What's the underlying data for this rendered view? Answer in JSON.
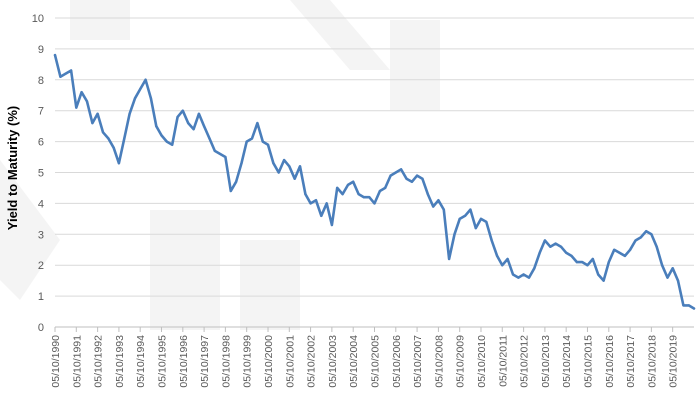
{
  "chart_data": {
    "type": "line",
    "title": "",
    "xlabel": "",
    "ylabel": "Yield to Maturity (%)",
    "ylim": [
      0,
      10
    ],
    "yticks": [
      "0",
      "1",
      "2",
      "3",
      "4",
      "5",
      "6",
      "7",
      "8",
      "9",
      "10"
    ],
    "x_ticks": [
      "05/10/1990",
      "05/10/1991",
      "05/10/1992",
      "05/10/1993",
      "05/10/1994",
      "05/10/1995",
      "05/10/1996",
      "05/10/1997",
      "05/10/1998",
      "05/10/1999",
      "05/10/2000",
      "05/10/2001",
      "05/10/2002",
      "05/10/2003",
      "05/10/2004",
      "05/10/2005",
      "05/10/2006",
      "05/10/2007",
      "05/10/2008",
      "05/10/2009",
      "05/10/2010",
      "05/10/2011",
      "05/10/2012",
      "05/10/2013",
      "05/10/2014",
      "05/10/2015",
      "05/10/2016",
      "05/10/2017",
      "05/10/2018",
      "05/10/2019"
    ],
    "grid": true,
    "legend": "none",
    "series_color": "#4a7ebb",
    "series": [
      {
        "x": [
          "1990-05",
          "1990-08",
          "1990-11",
          "1991-02",
          "1991-05",
          "1991-08",
          "1991-11",
          "1992-02",
          "1992-05",
          "1992-08",
          "1992-11",
          "1993-02",
          "1993-05",
          "1993-08",
          "1993-11",
          "1994-02",
          "1994-05",
          "1994-08",
          "1994-11",
          "1995-02",
          "1995-05",
          "1995-08",
          "1995-11",
          "1996-02",
          "1996-05",
          "1996-08",
          "1996-11",
          "1997-02",
          "1997-05",
          "1997-08",
          "1997-11",
          "1998-02",
          "1998-05",
          "1998-08",
          "1998-11",
          "1999-02",
          "1999-05",
          "1999-08",
          "1999-11",
          "2000-02",
          "2000-05",
          "2000-08",
          "2000-11",
          "2001-02",
          "2001-05",
          "2001-08",
          "2001-11",
          "2002-02",
          "2002-05",
          "2002-08",
          "2002-11",
          "2003-02",
          "2003-05",
          "2003-08",
          "2003-11",
          "2004-02",
          "2004-05",
          "2004-08",
          "2004-11",
          "2005-02",
          "2005-05",
          "2005-08",
          "2005-11",
          "2006-02",
          "2006-05",
          "2006-08",
          "2006-11",
          "2007-02",
          "2007-05",
          "2007-08",
          "2007-11",
          "2008-02",
          "2008-05",
          "2008-08",
          "2008-11",
          "2009-02",
          "2009-05",
          "2009-08",
          "2009-11",
          "2010-02",
          "2010-05",
          "2010-08",
          "2010-11",
          "2011-02",
          "2011-05",
          "2011-08",
          "2011-11",
          "2012-02",
          "2012-05",
          "2012-08",
          "2012-11",
          "2013-02",
          "2013-05",
          "2013-08",
          "2013-11",
          "2014-02",
          "2014-05",
          "2014-08",
          "2014-11",
          "2015-02",
          "2015-05",
          "2015-08",
          "2015-11",
          "2016-02",
          "2016-05",
          "2016-08",
          "2016-11",
          "2017-02",
          "2017-05",
          "2017-08",
          "2017-11",
          "2018-02",
          "2018-05",
          "2018-08",
          "2018-11",
          "2019-02",
          "2019-05",
          "2019-08",
          "2019-11",
          "2020-02",
          "2020-05"
        ],
        "values": [
          8.8,
          8.1,
          8.2,
          8.3,
          7.1,
          7.6,
          7.3,
          6.6,
          6.9,
          6.3,
          6.1,
          5.8,
          5.3,
          6.1,
          6.9,
          7.4,
          7.7,
          8.0,
          7.4,
          6.5,
          6.2,
          6.0,
          5.9,
          6.8,
          7.0,
          6.6,
          6.4,
          6.9,
          6.5,
          6.1,
          5.7,
          5.6,
          5.5,
          4.4,
          4.7,
          5.3,
          6.0,
          6.1,
          6.6,
          6.0,
          5.9,
          5.3,
          5.0,
          5.4,
          5.2,
          4.8,
          5.2,
          4.3,
          4.0,
          4.1,
          3.6,
          4.0,
          3.3,
          4.5,
          4.3,
          4.6,
          4.7,
          4.3,
          4.2,
          4.2,
          4.0,
          4.4,
          4.5,
          4.9,
          5.0,
          5.1,
          4.8,
          4.7,
          4.9,
          4.8,
          4.3,
          3.9,
          4.1,
          3.8,
          2.2,
          3.0,
          3.5,
          3.6,
          3.8,
          3.2,
          3.5,
          3.4,
          2.8,
          2.3,
          2.0,
          2.2,
          1.7,
          1.6,
          1.7,
          1.6,
          1.9,
          2.4,
          2.8,
          2.6,
          2.7,
          2.6,
          2.4,
          2.3,
          2.1,
          2.1,
          2.0,
          2.2,
          1.7,
          1.5,
          2.1,
          2.5,
          2.4,
          2.3,
          2.5,
          2.8,
          2.9,
          3.1,
          3.0,
          2.6,
          2.0,
          1.6,
          1.9,
          1.5,
          0.7,
          0.7,
          0.6
        ]
      }
    ]
  }
}
